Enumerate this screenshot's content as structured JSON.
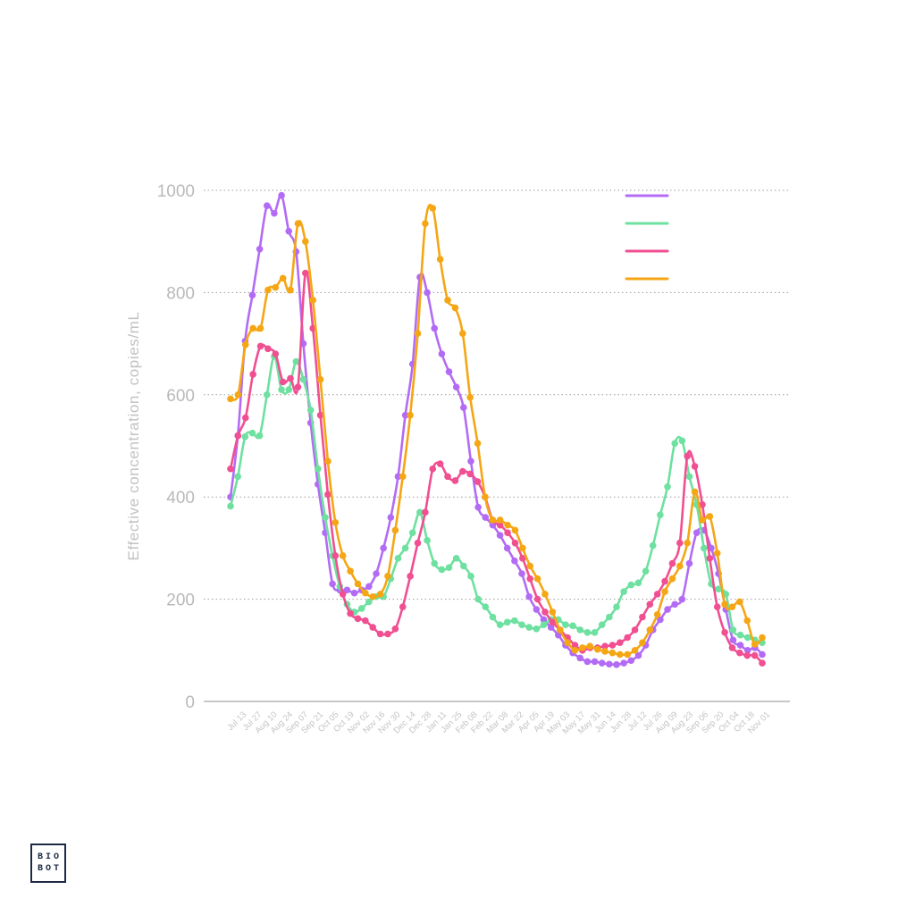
{
  "chart_data": {
    "type": "line",
    "ylabel": "Effective concentration, copies/mL",
    "ylim": [
      0,
      1000
    ],
    "yticks": [
      0,
      200,
      400,
      600,
      800,
      1000
    ],
    "grid": "horizontal dotted",
    "legend_position": "top-right",
    "x_tick_labels": [
      "Jul 13",
      "Jul 27",
      "Aug 10",
      "Aug 24",
      "Sep 07",
      "Sep 21",
      "Oct 05",
      "Oct 19",
      "Nov 02",
      "Nov 16",
      "Nov 30",
      "Dec 14",
      "Dec 28",
      "Jan 11",
      "Jan 25",
      "Feb 08",
      "Feb 22",
      "Mar 08",
      "Mar 22",
      "Apr 05",
      "Apr 19",
      "May 03",
      "May 17",
      "May 31",
      "Jun 14",
      "Jun 28",
      "Jul 12",
      "Jul 26",
      "Aug 09",
      "Aug 23",
      "Sep 06",
      "Sep 20",
      "Oct 04",
      "Oct 18",
      "Nov 01"
    ],
    "series": [
      {
        "color": "#b36bf5",
        "values": [
          400,
          520,
          705,
          795,
          885,
          970,
          955,
          990,
          920,
          880,
          700,
          545,
          425,
          330,
          230,
          218,
          218,
          212,
          218,
          225,
          250,
          300,
          360,
          440,
          560,
          660,
          830,
          800,
          730,
          680,
          645,
          615,
          575,
          470,
          380,
          360,
          345,
          325,
          300,
          275,
          250,
          205,
          180,
          160,
          145,
          130,
          110,
          95,
          85,
          78,
          78,
          75,
          73,
          72,
          75,
          80,
          90,
          110,
          140,
          160,
          180,
          190,
          200,
          270,
          330,
          335,
          300,
          250,
          180,
          120,
          110,
          100,
          105,
          92
        ]
      },
      {
        "color": "#6ee0a0",
        "values": [
          382,
          440,
          518,
          525,
          520,
          600,
          675,
          610,
          610,
          665,
          630,
          570,
          455,
          360,
          285,
          225,
          190,
          175,
          182,
          195,
          205,
          205,
          240,
          280,
          300,
          330,
          370,
          315,
          270,
          258,
          262,
          280,
          265,
          245,
          200,
          185,
          165,
          150,
          155,
          158,
          150,
          145,
          142,
          150,
          160,
          160,
          150,
          148,
          140,
          135,
          135,
          150,
          165,
          185,
          215,
          228,
          232,
          255,
          305,
          365,
          420,
          505,
          510,
          440,
          385,
          300,
          230,
          220,
          210,
          140,
          130,
          125,
          120,
          115
        ]
      },
      {
        "color": "#f04f91",
        "values": [
          455,
          520,
          555,
          640,
          695,
          690,
          680,
          625,
          632,
          615,
          838,
          730,
          560,
          405,
          285,
          210,
          172,
          162,
          158,
          145,
          132,
          132,
          142,
          185,
          245,
          310,
          370,
          455,
          465,
          440,
          432,
          450,
          445,
          430,
          400,
          355,
          345,
          330,
          310,
          280,
          240,
          200,
          175,
          155,
          140,
          125,
          110,
          100,
          105,
          105,
          108,
          110,
          115,
          125,
          140,
          165,
          190,
          210,
          235,
          270,
          310,
          480,
          460,
          385,
          280,
          185,
          135,
          105,
          95,
          90,
          90,
          75
        ]
      },
      {
        "color": "#f5a614",
        "values": [
          592,
          600,
          698,
          730,
          730,
          805,
          810,
          828,
          805,
          935,
          900,
          785,
          630,
          470,
          350,
          285,
          255,
          230,
          212,
          205,
          210,
          245,
          335,
          440,
          560,
          720,
          935,
          965,
          865,
          785,
          770,
          720,
          595,
          505,
          400,
          355,
          355,
          345,
          335,
          300,
          265,
          240,
          210,
          175,
          140,
          115,
          100,
          105,
          108,
          102,
          98,
          95,
          92,
          92,
          100,
          115,
          140,
          170,
          215,
          240,
          265,
          310,
          410,
          355,
          362,
          290,
          190,
          185,
          195,
          158,
          112,
          125
        ]
      }
    ]
  },
  "logo": {
    "line1": "BIO",
    "line2": "BOT"
  }
}
